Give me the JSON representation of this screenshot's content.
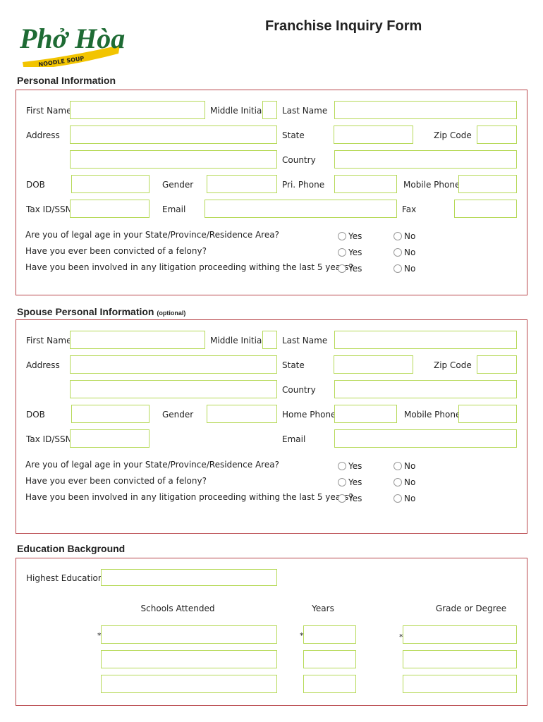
{
  "logo": {
    "text": "Phở Hòa",
    "tagline": "NOODLE SOUP",
    "colors": {
      "green": "#1e6b34",
      "yellow": "#f2c400",
      "red": "#c0272d"
    }
  },
  "title": "Franchise Inquiry Form",
  "personal": {
    "heading": "Personal Information",
    "labels": {
      "first_name": "First Name",
      "middle_initial": "Middle Initial",
      "last_name": "Last Name",
      "address": "Address",
      "state": "State",
      "zip": "Zip Code",
      "country": "Country",
      "dob": "DOB",
      "gender": "Gender",
      "pri_phone": "Pri. Phone",
      "mobile_phone": "Mobile  Phone",
      "tax": "Tax ID/SSN",
      "email": "Email",
      "fax": "Fax"
    },
    "questions": [
      "Are you of legal age in your State/Province/Residence Area?",
      "Have you ever been convicted of a felony?",
      "Have you been involved in any litigation proceeding withing the last 5 years?"
    ]
  },
  "spouse": {
    "heading": "Spouse Personal Information",
    "optional": "(optional)",
    "labels": {
      "first_name": "First Name",
      "middle_initial": "Middle Initial",
      "last_name": "Last Name",
      "address": "Address",
      "state": "State",
      "zip": "Zip Code",
      "country": "Country",
      "dob": "DOB",
      "gender": "Gender",
      "home_phone": "Home Phone",
      "mobile_phone": "Mobile Phone",
      "tax": "Tax ID/SSN",
      "email": "Email"
    },
    "questions": [
      "Are you of legal age in your State/Province/Residence Area?",
      "Have you ever been convicted of a felony?",
      "Have you been involved in any litigation proceeding withing the last 5 years?"
    ]
  },
  "radio": {
    "yes": "Yes",
    "no": "No"
  },
  "education": {
    "heading": "Education Background",
    "highest": "Highest Education",
    "columns": [
      "Schools Attended",
      "Years",
      "Grade or Degree"
    ],
    "required_mark": "*"
  },
  "colors": {
    "section_border": "#b8464a",
    "field_border": "#b6d958"
  }
}
